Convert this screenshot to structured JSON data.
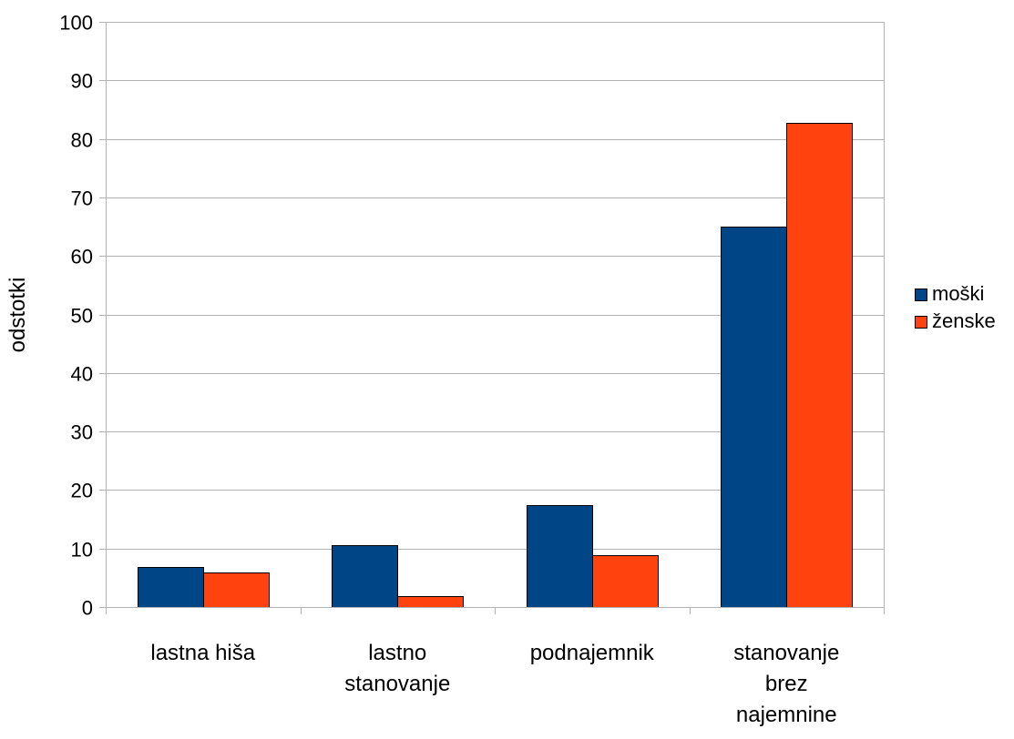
{
  "chart_data": {
    "type": "bar",
    "title": "",
    "xlabel": "",
    "ylabel": "odstotki",
    "ylim": [
      0,
      100
    ],
    "yticks": [
      0,
      10,
      20,
      30,
      40,
      50,
      60,
      70,
      80,
      90,
      100
    ],
    "grid": true,
    "legend_position": "right",
    "categories": [
      [
        "lastna hiša"
      ],
      [
        "lastno",
        "stanovanje"
      ],
      [
        "podnajemnik"
      ],
      [
        "stanovanje",
        "brez",
        "najemnine"
      ]
    ],
    "series": [
      {
        "name": "moški",
        "color": "#004586",
        "values": [
          6.8,
          10.5,
          17.4,
          65.0
        ]
      },
      {
        "name": "ženske",
        "color": "#ff420e",
        "values": [
          5.9,
          1.9,
          8.9,
          82.8
        ]
      }
    ]
  }
}
